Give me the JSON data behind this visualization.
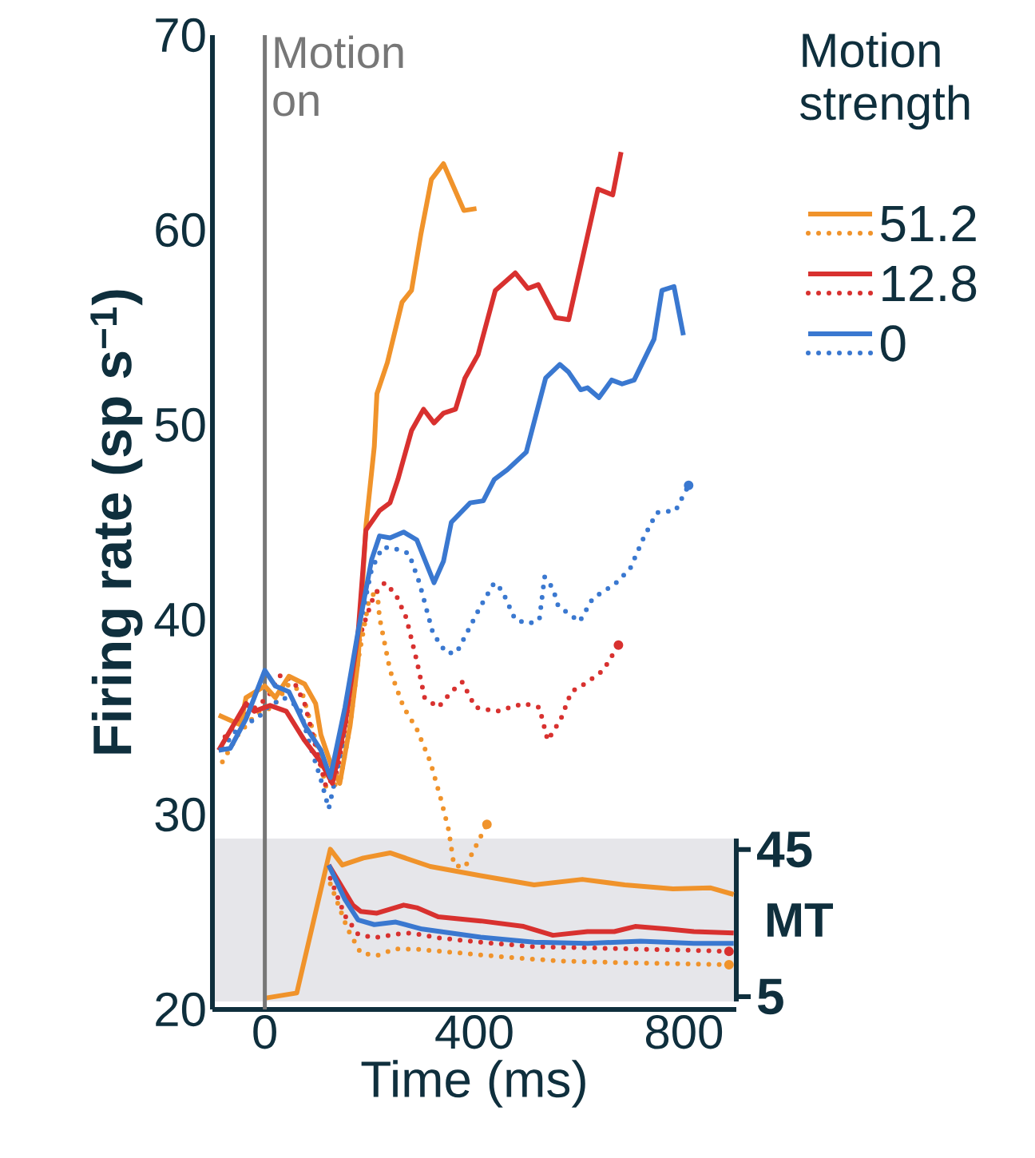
{
  "chart_data": [
    {
      "type": "line",
      "xlabel": "Time (ms)",
      "ylabel": "Firing rate (sp s$^{−1}$)",
      "legend_title": "Motion strength",
      "legend": "top right",
      "xlim": [
        -100,
        900
      ],
      "ylim": [
        20,
        70
      ],
      "xticks": [
        0,
        400,
        800
      ],
      "yticks": [
        20,
        30,
        40,
        50,
        60,
        70
      ],
      "ref_lines": [
        {
          "axis": "x",
          "value": 0,
          "label": "Motion on",
          "color": "#777777"
        }
      ],
      "series": [
        {
          "color": "#f0932b",
          "line_style": "dotted",
          "x": [
            -81,
            -51,
            -15,
            15,
            46,
            71,
            97,
            117,
            143,
            163,
            178,
            198,
            214,
            219,
            239,
            265,
            290,
            316,
            336,
            351,
            361,
            382,
            407,
            424
          ],
          "values": [
            32.7,
            34.1,
            35.2,
            35.5,
            36.7,
            36.3,
            33.8,
            31.4,
            31.6,
            34.6,
            37.9,
            40.9,
            41.6,
            40.1,
            37.4,
            35.5,
            34.4,
            32.7,
            30.8,
            29.2,
            27.4,
            27.3,
            28.6,
            29.5
          ]
        },
        {
          "color": "#d8312f",
          "line_style": "dotted",
          "x": [
            -76,
            -46,
            5,
            31,
            56,
            76,
            97,
            117,
            138,
            158,
            183,
            209,
            229,
            250,
            270,
            290,
            305,
            331,
            356,
            377,
            402,
            443,
            494,
            524,
            540,
            565,
            585,
            616,
            646,
            675
          ],
          "values": [
            34.0,
            34.9,
            36.0,
            37.2,
            36.8,
            35.7,
            33.5,
            31.4,
            32.2,
            35.2,
            39.3,
            41.3,
            41.9,
            41.3,
            40.1,
            37.9,
            36.0,
            35.5,
            36.3,
            36.8,
            35.5,
            35.3,
            35.7,
            35.5,
            33.8,
            34.9,
            36.3,
            36.8,
            37.4,
            38.7
          ]
        },
        {
          "color": "#3a78d0",
          "line_style": "dotted",
          "x": [
            -81,
            -46,
            -15,
            5,
            36,
            66,
            87,
            107,
            122,
            148,
            178,
            204,
            224,
            243,
            275,
            295,
            321,
            346,
            366,
            412,
            438,
            453,
            478,
            504,
            524,
            534,
            550,
            560,
            601,
            626,
            667,
            697,
            723,
            748,
            784,
            809
          ],
          "values": [
            33.4,
            34.6,
            34.9,
            35.5,
            36.0,
            35.5,
            33.5,
            31.8,
            30.3,
            33.5,
            39.3,
            42.6,
            43.7,
            43.7,
            43.4,
            41.9,
            39.3,
            38.3,
            38.3,
            40.7,
            41.9,
            41.5,
            40.0,
            39.8,
            40.0,
            42.2,
            41.6,
            40.7,
            39.9,
            41.1,
            41.8,
            42.6,
            44.2,
            45.5,
            45.6,
            46.9
          ]
        },
        {
          "name": "51.2",
          "color": "#f0932b",
          "line_style": "solid",
          "x": [
            -88,
            -46,
            -36,
            0,
            20,
            46,
            76,
            97,
            107,
            127,
            143,
            163,
            178,
            193,
            209,
            214,
            234,
            262,
            280,
            298,
            318,
            341,
            380,
            404
          ],
          "values": [
            35.1,
            34.6,
            36.0,
            36.6,
            36.0,
            37.1,
            36.7,
            35.7,
            34.1,
            32.5,
            31.6,
            34.6,
            37.9,
            44.8,
            48.9,
            51.6,
            53.2,
            56.3,
            56.9,
            59.8,
            62.6,
            63.4,
            61.0,
            61.1
          ]
        },
        {
          "name": "12.8",
          "color": "#d8312f",
          "line_style": "solid",
          "x": [
            -88,
            -36,
            -20,
            10,
            41,
            76,
            107,
            129,
            153,
            178,
            193,
            219,
            239,
            254,
            280,
            303,
            323,
            341,
            364,
            382,
            407,
            440,
            478,
            502,
            522,
            555,
            580,
            636,
            664,
            680
          ],
          "values": [
            33.3,
            35.7,
            35.3,
            35.6,
            35.3,
            33.8,
            32.7,
            31.6,
            34.6,
            39.3,
            44.6,
            45.6,
            46.0,
            47.2,
            49.7,
            50.8,
            50.1,
            50.6,
            50.8,
            52.4,
            53.6,
            56.9,
            57.8,
            57.0,
            57.2,
            55.5,
            55.4,
            62.1,
            61.8,
            64.0
          ]
        },
        {
          "name": "0",
          "color": "#3a78d0",
          "line_style": "solid",
          "x": [
            -88,
            -66,
            -36,
            0,
            20,
            46,
            76,
            107,
            125,
            153,
            178,
            204,
            219,
            239,
            265,
            290,
            323,
            341,
            356,
            392,
            417,
            438,
            463,
            499,
            536,
            563,
            580,
            603,
            616,
            638,
            662,
            682,
            705,
            743,
            758,
            781,
            799
          ],
          "values": [
            33.3,
            33.4,
            34.9,
            37.4,
            36.6,
            36.3,
            34.6,
            33.3,
            31.9,
            35.5,
            39.4,
            43.1,
            44.3,
            44.2,
            44.5,
            44.1,
            41.9,
            43.0,
            45.0,
            46.0,
            46.1,
            47.2,
            47.7,
            48.6,
            52.4,
            53.1,
            52.7,
            51.8,
            51.9,
            51.4,
            52.3,
            52.1,
            52.3,
            54.4,
            56.9,
            57.1,
            54.6
          ]
        }
      ]
    },
    {
      "type": "line",
      "ylabel": "MT",
      "tick_labels": "y",
      "xlim": [
        -100,
        900
      ],
      "ylim": [
        3.7,
        48
      ],
      "yticks": [
        5,
        45
      ],
      "series": [
        {
          "color": "#f0932b",
          "line_style": "dotted",
          "x": [
            125,
            158,
            183,
            214,
            250,
            290,
            371,
            463,
            565,
            667,
            768,
            886
          ],
          "values": [
            35.7,
            23.4,
            16.9,
            16.2,
            18.0,
            17.9,
            16.9,
            15.7,
            14.7,
            14.3,
            14.0,
            13.7
          ]
        },
        {
          "color": "#d8312f",
          "line_style": "dotted",
          "x": [
            125,
            153,
            178,
            209,
            250,
            280,
            331,
            412,
            514,
            616,
            717,
            819,
            886
          ],
          "values": [
            37.2,
            27.0,
            22.0,
            21.0,
            22.0,
            22.3,
            21.0,
            19.8,
            18.6,
            18.3,
            17.9,
            17.6,
            17.3
          ]
        },
        {
          "color": "#f0932b",
          "line_style": "solid",
          "x": [
            0,
            61,
            125,
            148,
            188,
            239,
            316,
            412,
            514,
            606,
            687,
            779,
            850,
            895
          ],
          "values": [
            4.6,
            6.0,
            45.1,
            40.8,
            42.7,
            44.1,
            40.4,
            37.9,
            35.4,
            36.9,
            35.4,
            34.3,
            34.6,
            32.8
          ]
        },
        {
          "color": "#d8312f",
          "line_style": "solid",
          "x": [
            122,
            168,
            183,
            214,
            265,
            290,
            331,
            412,
            494,
            550,
            616,
            667,
            707,
            768,
            819,
            895
          ],
          "values": [
            40.8,
            29.9,
            28.2,
            27.7,
            29.9,
            29.2,
            26.7,
            25.6,
            24.1,
            21.7,
            22.7,
            22.7,
            24.1,
            23.4,
            22.7,
            22.3
          ]
        },
        {
          "color": "#3a78d0",
          "line_style": "solid",
          "x": [
            122,
            153,
            178,
            209,
            250,
            300,
            412,
            514,
            616,
            717,
            819,
            895
          ],
          "values": [
            40.8,
            31.4,
            25.9,
            24.6,
            25.3,
            23.4,
            21.2,
            19.8,
            19.5,
            20.1,
            19.5,
            19.5
          ]
        }
      ]
    }
  ]
}
